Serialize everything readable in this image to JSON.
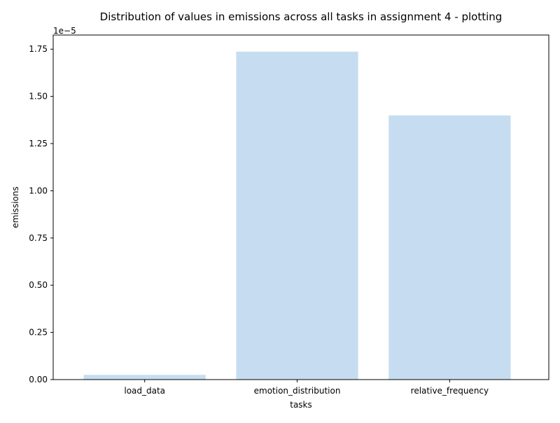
{
  "chart_data": {
    "type": "bar",
    "title": "Distribution of values in emissions across all tasks in assignment 4 - plotting",
    "xlabel": "tasks",
    "ylabel": "emissions",
    "offset_label": "1e−5",
    "categories": [
      "load_data",
      "emotion_distribution",
      "relative_frequency"
    ],
    "values": [
      2.5e-07,
      1.737e-05,
      1.399e-05
    ],
    "ylim": [
      0,
      1.825e-05
    ],
    "yticks": [
      0,
      2.5e-06,
      5e-06,
      7.5e-06,
      1e-05,
      1.25e-05,
      1.5e-05,
      1.75e-05
    ],
    "ytick_labels": [
      "0.00",
      "0.25",
      "0.50",
      "0.75",
      "1.00",
      "1.25",
      "1.50",
      "1.75"
    ],
    "bar_color": "#c6ddf1",
    "grid": false,
    "legend": false
  }
}
